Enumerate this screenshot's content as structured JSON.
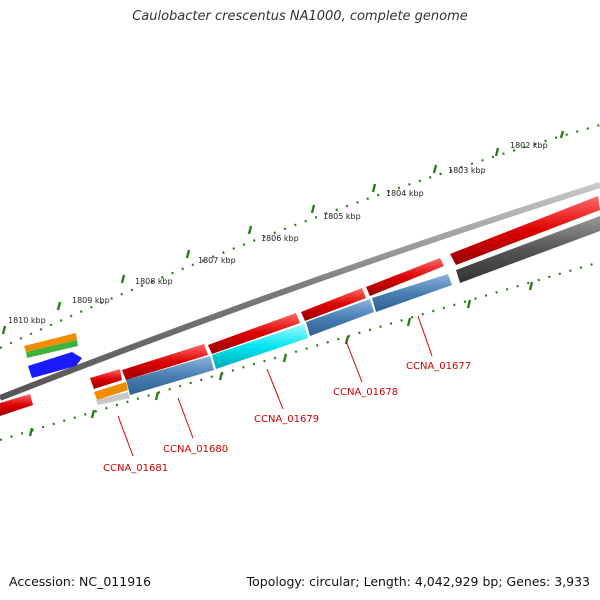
{
  "title": "Caulobacter crescentus NA1000, complete genome",
  "footer": {
    "accession": "Accession: NC_011916",
    "summary": "Topology: circular; Length: 4,042,929 bp; Genes: 3,933"
  },
  "colors": {
    "forward_gene": "#dd0000",
    "reverse_gene": "#4a7fb5",
    "highlight_gene": "#00e5ef",
    "grey_gene": "#555555",
    "backbone": "#808080",
    "tick": "#2a7a1a",
    "label": "#cc0000"
  },
  "scale_labels": [
    "1802 kbp",
    "1803 kbp",
    "1804 kbp",
    "1805 kbp",
    "1806 kbp",
    "1807 kbp",
    "1808 kbp",
    "1809 kbp",
    "1810 kbp"
  ],
  "gene_labels": [
    "CCNA_01677",
    "CCNA_01678",
    "CCNA_01679",
    "CCNA_01680",
    "CCNA_01681"
  ]
}
